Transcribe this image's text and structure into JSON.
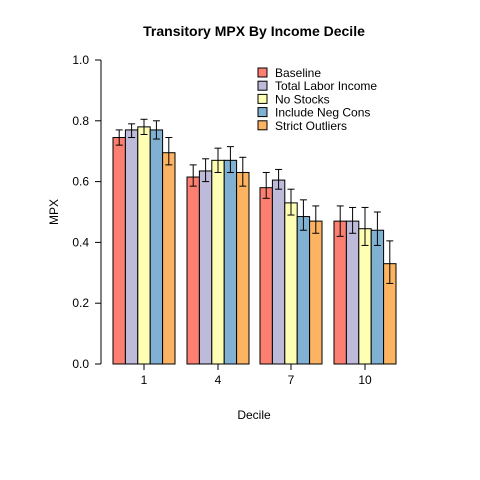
{
  "chart_data": {
    "type": "bar",
    "title": "Transitory MPX By Income Decile",
    "xlabel": "Decile",
    "ylabel": "MPX",
    "ylim": [
      0,
      1
    ],
    "yticks": [
      "0.0",
      "0.2",
      "0.4",
      "0.6",
      "0.8",
      "1.0"
    ],
    "categories": [
      "1",
      "4",
      "7",
      "10"
    ],
    "legend_position": "top-right",
    "grid": false,
    "series": [
      {
        "name": "Baseline",
        "color": "#fb8072",
        "values": [
          0.745,
          0.615,
          0.58,
          0.47
        ],
        "lower": [
          0.72,
          0.585,
          0.545,
          0.42
        ],
        "upper": [
          0.77,
          0.655,
          0.63,
          0.52
        ]
      },
      {
        "name": "Total Labor Income",
        "color": "#bebada",
        "values": [
          0.77,
          0.635,
          0.605,
          0.47
        ],
        "lower": [
          0.745,
          0.6,
          0.575,
          0.43
        ],
        "upper": [
          0.79,
          0.675,
          0.64,
          0.515
        ]
      },
      {
        "name": "No Stocks",
        "color": "#ffffb3",
        "values": [
          0.78,
          0.67,
          0.53,
          0.445
        ],
        "lower": [
          0.755,
          0.63,
          0.49,
          0.39
        ],
        "upper": [
          0.805,
          0.71,
          0.575,
          0.515
        ]
      },
      {
        "name": "Include Neg Cons",
        "color": "#80b1d3",
        "values": [
          0.77,
          0.67,
          0.485,
          0.44
        ],
        "lower": [
          0.74,
          0.63,
          0.44,
          0.39
        ],
        "upper": [
          0.8,
          0.715,
          0.54,
          0.5
        ]
      },
      {
        "name": "Strict Outliers",
        "color": "#fdb462",
        "values": [
          0.695,
          0.63,
          0.47,
          0.33
        ],
        "lower": [
          0.655,
          0.585,
          0.43,
          0.265
        ],
        "upper": [
          0.745,
          0.68,
          0.52,
          0.405
        ]
      }
    ]
  }
}
